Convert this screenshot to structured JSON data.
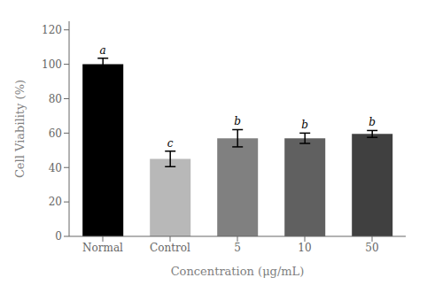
{
  "chart_data": {
    "type": "bar",
    "categories": [
      "Normal",
      "Control",
      "5",
      "10",
      "50"
    ],
    "values": [
      100,
      45,
      57,
      57,
      59.5
    ],
    "errors": [
      3.5,
      4.5,
      5.0,
      3.0,
      2.0
    ],
    "colors": [
      "#000000",
      "#b8b8b8",
      "#808080",
      "#606060",
      "#404040"
    ],
    "annotations": [
      "a",
      "c",
      "b",
      "b",
      "b"
    ],
    "xlabel": "Concentration (μg/mL)",
    "ylabel": "Cell Viability (%)",
    "ylim": [
      0,
      125
    ],
    "yticks": [
      0,
      20,
      40,
      60,
      80,
      100,
      120
    ],
    "grid": false
  }
}
